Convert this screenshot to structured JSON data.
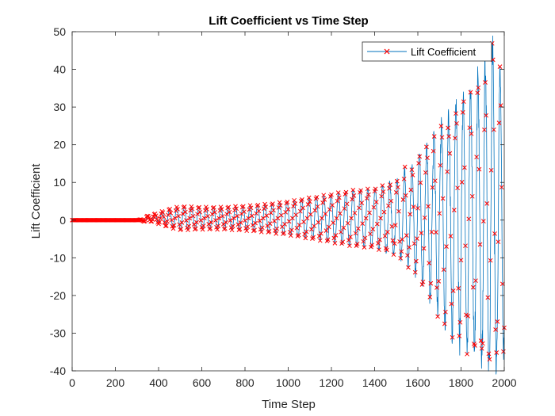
{
  "chart_data": {
    "type": "line",
    "title": "Lift Coefficient vs Time Step",
    "xlabel": "Time Step",
    "ylabel": "Lift Coefficient",
    "xlim": [
      0,
      2000
    ],
    "ylim": [
      -40,
      50
    ],
    "xticks": [
      0,
      200,
      400,
      600,
      800,
      1000,
      1200,
      1400,
      1600,
      1800,
      2000
    ],
    "yticks": [
      -40,
      -30,
      -20,
      -10,
      0,
      10,
      20,
      30,
      40,
      50
    ],
    "grid": false,
    "legend_position": "top-right",
    "series": [
      {
        "name": "Lift Coefficient",
        "line_color": "#0072BD",
        "marker": "x",
        "marker_color": "#FF0000",
        "envelope": {
          "x": [
            0,
            300,
            330,
            360,
            400,
            450,
            500,
            600,
            700,
            800,
            900,
            1000,
            1100,
            1200,
            1300,
            1400,
            1500,
            1550,
            1600,
            1650,
            1700,
            1750,
            1800,
            1850,
            1900,
            1950,
            2000
          ],
          "amplitude": [
            0,
            0,
            0.3,
            0.8,
            1.5,
            2.5,
            3.2,
            3.0,
            3.0,
            3.3,
            3.8,
            4.5,
            5.5,
            6.5,
            7.5,
            8.0,
            10,
            12,
            16,
            20,
            25,
            28,
            31,
            34,
            38,
            44,
            35
          ]
        },
        "period": 34,
        "mean": 0.5
      }
    ]
  }
}
